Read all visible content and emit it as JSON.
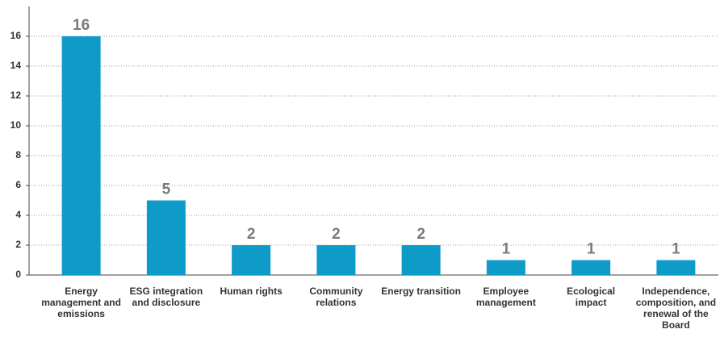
{
  "chart_data": {
    "type": "bar",
    "categories": [
      "Energy management and emissions",
      "ESG integration and disclosure",
      "Human rights",
      "Community relations",
      "Energy transition",
      "Employee management",
      "Ecological impact",
      "Independence, composition, and renewal of the Board"
    ],
    "values": [
      16,
      5,
      2,
      2,
      2,
      1,
      1,
      1
    ],
    "color": "#0f9bc8",
    "ylim": [
      0,
      18
    ],
    "yticks": [
      0,
      2,
      4,
      6,
      8,
      10,
      12,
      14,
      16
    ],
    "grid": true
  }
}
